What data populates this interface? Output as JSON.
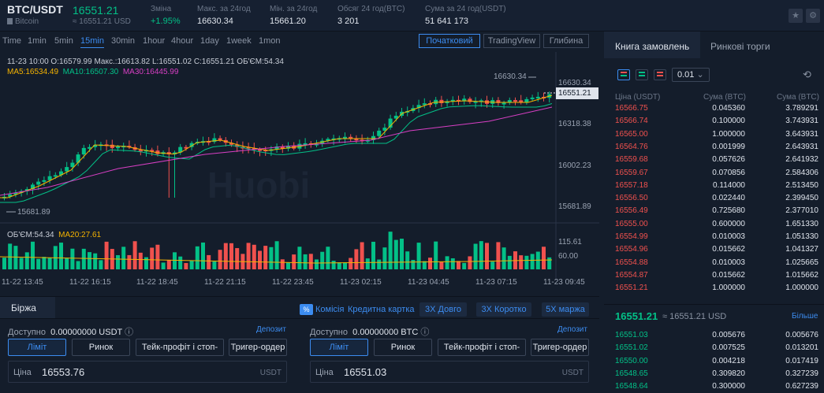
{
  "header": {
    "pair": "BTC/USDT",
    "pair_sub": "Bitcoin",
    "price": "16551.21",
    "price_sub": "≈ 16551.21 USD",
    "stats": [
      {
        "label": "Зміна",
        "value": "+1.95%"
      },
      {
        "label": "Макс. за 24год",
        "value": "16630.34"
      },
      {
        "label": "Мін. за 24год",
        "value": "15661.20"
      },
      {
        "label": "Обсяг 24 год(BTC)",
        "value": "3 201"
      },
      {
        "label": "Сума за 24 год(USDT)",
        "value": "51 641 173"
      }
    ]
  },
  "timeframes": [
    "Time",
    "1min",
    "5min",
    "15min",
    "30min",
    "1hour",
    "4hour",
    "1day",
    "1week",
    "1mon"
  ],
  "views": [
    "Початковий",
    "TradingView",
    "Глибина"
  ],
  "chart": {
    "ohlc": "11-23 10:00  O:16579.99  Макс.:16613.82  L:16551.02  C:16551.21  ОБ'ЄМ:54.34",
    "ma5": "MA5:16534.49",
    "ma10": "MA10:16507.30",
    "ma30": "MA30:16445.99",
    "vol": "ОБ'ЄМ:54.34",
    "ma20": "MA20:27.61",
    "watermark": "Huobi",
    "high_mark": "16630.34",
    "low_mark": "15681.89",
    "current": "16551.21",
    "price_axis": [
      "16630.34",
      "16318.38",
      "16002.23",
      "15681.89"
    ],
    "vol_axis": [
      "115.61",
      "60.00"
    ],
    "time_axis": [
      "11-22 13:45",
      "11-22 16:15",
      "11-22 18:45",
      "11-22 21:15",
      "11-22 23:45",
      "11-23 02:15",
      "11-23 04:45",
      "11-23 07:15",
      "11-23 09:45"
    ]
  },
  "orderbook": {
    "tabs": [
      "Книга замовлень",
      "Ринкові торги"
    ],
    "decimals": "0.01",
    "headers": [
      "Ціна (USDT)",
      "Сума (BTC)",
      "Сума (BTC)"
    ],
    "asks": [
      [
        "16566.75",
        "0.045360",
        "3.789291"
      ],
      [
        "16566.74",
        "0.100000",
        "3.743931"
      ],
      [
        "16565.00",
        "1.000000",
        "3.643931"
      ],
      [
        "16564.76",
        "0.001999",
        "2.643931"
      ],
      [
        "16559.68",
        "0.057626",
        "2.641932"
      ],
      [
        "16559.67",
        "0.070856",
        "2.584306"
      ],
      [
        "16557.18",
        "0.114000",
        "2.513450"
      ],
      [
        "16556.50",
        "0.022440",
        "2.399450"
      ],
      [
        "16556.49",
        "0.725680",
        "2.377010"
      ],
      [
        "16555.00",
        "0.600000",
        "1.651330"
      ],
      [
        "16554.99",
        "0.010003",
        "1.051330"
      ],
      [
        "16554.96",
        "0.015662",
        "1.041327"
      ],
      [
        "16554.88",
        "0.010003",
        "1.025665"
      ],
      [
        "16554.87",
        "0.015662",
        "1.015662"
      ],
      [
        "16551.21",
        "1.000000",
        "1.000000"
      ]
    ],
    "mid_price": "16551.21",
    "mid_sub": "≈ 16551.21 USD",
    "more": "Більше",
    "bids": [
      [
        "16551.03",
        "0.005676",
        "0.005676"
      ],
      [
        "16551.02",
        "0.007525",
        "0.013201"
      ],
      [
        "16550.00",
        "0.004218",
        "0.017419"
      ],
      [
        "16548.65",
        "0.309820",
        "0.327239"
      ],
      [
        "16548.64",
        "0.300000",
        "0.627239"
      ]
    ]
  },
  "trade": {
    "tab": "Біржа",
    "fee_badge": "%",
    "fee": "Комісія",
    "credit": "Кредитна картка",
    "long": "3X Довго",
    "short": "3X Коротко",
    "margin": "5X маржа",
    "left": {
      "available": "Доступно",
      "amount": "0.00000000 USDT",
      "deposit": "Депозит",
      "price": "16553.76",
      "unit": "USDT"
    },
    "right": {
      "available": "Доступно",
      "amount": "0.00000000 BTC",
      "deposit": "Депозит",
      "price": "16551.03",
      "unit": "USDT"
    },
    "order_types": [
      "Ліміт",
      "Ринок",
      "Тейк-профіт і стоп-лосс",
      "Тригер-ордер"
    ],
    "price_label": "Ціна"
  },
  "colors": {
    "up": "#03c087",
    "down": "#f0514e",
    "accent": "#3c8cf0"
  }
}
